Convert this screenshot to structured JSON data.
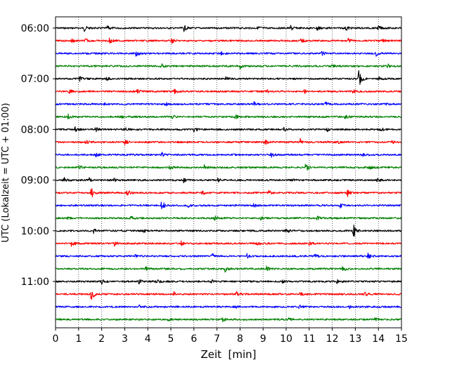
{
  "chart_data": {
    "type": "line",
    "title": "",
    "xlabel": "Zeit  [min]",
    "ylabel": "UTC (Lokalzeit = UTC + 01:00)",
    "xlim": [
      0,
      15
    ],
    "x_ticks": [
      "0",
      "1",
      "2",
      "3",
      "4",
      "5",
      "6",
      "7",
      "8",
      "9",
      "10",
      "11",
      "12",
      "13",
      "14",
      "15"
    ],
    "y_tick_labels": [
      "06:00",
      "07:00",
      "08:00",
      "09:00",
      "10:00",
      "11:00"
    ],
    "grid": "vertical dotted at each minute",
    "trace_interval_min": 15,
    "trace_colors": [
      "#000000",
      "#ff0000",
      "#0000ff",
      "#008000"
    ],
    "traces": [
      {
        "start": "06:00",
        "events": [
          {
            "t": 1.25,
            "a": 4
          },
          {
            "t": 2.25,
            "a": 3
          },
          {
            "t": 5.55,
            "a": 5
          },
          {
            "t": 8.8,
            "a": 3
          },
          {
            "t": 10.2,
            "a": 4
          },
          {
            "t": 11.35,
            "a": 5
          },
          {
            "t": 12.6,
            "a": 4
          },
          {
            "t": 14.0,
            "a": 3
          }
        ]
      },
      {
        "start": "06:15",
        "events": [
          {
            "t": 0.7,
            "a": 3
          },
          {
            "t": 1.3,
            "a": 3
          },
          {
            "t": 2.35,
            "a": 5
          },
          {
            "t": 5.05,
            "a": 3
          },
          {
            "t": 10.65,
            "a": 3
          },
          {
            "t": 12.7,
            "a": 3
          },
          {
            "t": 14.15,
            "a": 3
          }
        ]
      },
      {
        "start": "06:30",
        "events": [
          {
            "t": 3.5,
            "a": 5
          },
          {
            "t": 7.2,
            "a": 3
          },
          {
            "t": 11.55,
            "a": 3
          },
          {
            "t": 13.9,
            "a": 3
          }
        ]
      },
      {
        "start": "06:45",
        "events": [
          {
            "t": 4.55,
            "a": 5
          },
          {
            "t": 8.0,
            "a": 3
          },
          {
            "t": 11.95,
            "a": 3
          },
          {
            "t": 14.4,
            "a": 3
          }
        ]
      },
      {
        "start": "07:00",
        "events": [
          {
            "t": 1.05,
            "a": 3
          },
          {
            "t": 2.2,
            "a": 3
          },
          {
            "t": 7.35,
            "a": 3
          },
          {
            "t": 13.15,
            "a": 14
          },
          {
            "t": 14.0,
            "a": 3
          }
        ]
      },
      {
        "start": "07:15",
        "events": [
          {
            "t": 0.6,
            "a": 3
          },
          {
            "t": 3.55,
            "a": 3
          },
          {
            "t": 5.15,
            "a": 3
          },
          {
            "t": 9.15,
            "a": 3
          },
          {
            "t": 10.8,
            "a": 3
          },
          {
            "t": 12.9,
            "a": 3
          }
        ]
      },
      {
        "start": "07:30",
        "events": [
          {
            "t": 2.05,
            "a": 3
          },
          {
            "t": 4.75,
            "a": 3
          },
          {
            "t": 8.6,
            "a": 3
          },
          {
            "t": 11.7,
            "a": 3
          },
          {
            "t": 14.3,
            "a": 3
          }
        ]
      },
      {
        "start": "07:45",
        "events": [
          {
            "t": 0.55,
            "a": 3
          },
          {
            "t": 2.8,
            "a": 3
          },
          {
            "t": 5.05,
            "a": 3
          },
          {
            "t": 7.8,
            "a": 3
          },
          {
            "t": 12.55,
            "a": 3
          }
        ]
      },
      {
        "start": "08:00",
        "events": [
          {
            "t": 0.85,
            "a": 3
          },
          {
            "t": 1.7,
            "a": 5
          },
          {
            "t": 2.95,
            "a": 4
          },
          {
            "t": 6.0,
            "a": 3
          },
          {
            "t": 9.9,
            "a": 4
          },
          {
            "t": 11.75,
            "a": 3
          },
          {
            "t": 14.1,
            "a": 3
          }
        ]
      },
      {
        "start": "08:15",
        "events": [
          {
            "t": 1.3,
            "a": 3
          },
          {
            "t": 3.0,
            "a": 3
          },
          {
            "t": 9.1,
            "a": 3
          },
          {
            "t": 10.6,
            "a": 6
          },
          {
            "t": 12.2,
            "a": 3
          },
          {
            "t": 14.6,
            "a": 3
          }
        ]
      },
      {
        "start": "08:30",
        "events": [
          {
            "t": 1.75,
            "a": 3
          },
          {
            "t": 4.6,
            "a": 3
          },
          {
            "t": 9.35,
            "a": 3
          },
          {
            "t": 13.3,
            "a": 3
          }
        ]
      },
      {
        "start": "08:45",
        "events": [
          {
            "t": 1.0,
            "a": 4
          },
          {
            "t": 4.95,
            "a": 3
          },
          {
            "t": 6.45,
            "a": 3
          },
          {
            "t": 10.85,
            "a": 6
          },
          {
            "t": 13.6,
            "a": 3
          }
        ]
      },
      {
        "start": "09:00",
        "events": [
          {
            "t": 0.35,
            "a": 4
          },
          {
            "t": 1.45,
            "a": 3
          },
          {
            "t": 2.55,
            "a": 3
          },
          {
            "t": 5.55,
            "a": 3
          },
          {
            "t": 7.05,
            "a": 3
          },
          {
            "t": 10.25,
            "a": 3
          },
          {
            "t": 13.95,
            "a": 4
          }
        ]
      },
      {
        "start": "09:15",
        "events": [
          {
            "t": 1.55,
            "a": 8
          },
          {
            "t": 3.1,
            "a": 7
          },
          {
            "t": 6.35,
            "a": 3
          },
          {
            "t": 9.25,
            "a": 3
          },
          {
            "t": 12.65,
            "a": 6
          }
        ]
      },
      {
        "start": "09:30",
        "events": [
          {
            "t": 4.6,
            "a": 8
          },
          {
            "t": 5.75,
            "a": 3
          },
          {
            "t": 8.6,
            "a": 3
          },
          {
            "t": 12.35,
            "a": 3
          }
        ]
      },
      {
        "start": "09:45",
        "events": [
          {
            "t": 0.5,
            "a": 3
          },
          {
            "t": 3.25,
            "a": 3
          },
          {
            "t": 6.9,
            "a": 3
          },
          {
            "t": 8.85,
            "a": 3
          },
          {
            "t": 11.35,
            "a": 3
          }
        ]
      },
      {
        "start": "10:00",
        "events": [
          {
            "t": 1.65,
            "a": 3
          },
          {
            "t": 3.8,
            "a": 3
          },
          {
            "t": 10.0,
            "a": 4
          },
          {
            "t": 12.9,
            "a": 12
          }
        ]
      },
      {
        "start": "10:15",
        "events": [
          {
            "t": 0.7,
            "a": 6
          },
          {
            "t": 2.55,
            "a": 3
          },
          {
            "t": 5.45,
            "a": 3
          },
          {
            "t": 8.75,
            "a": 3
          },
          {
            "t": 11.0,
            "a": 3
          }
        ]
      },
      {
        "start": "10:30",
        "events": [
          {
            "t": 3.45,
            "a": 3
          },
          {
            "t": 6.8,
            "a": 3
          },
          {
            "t": 8.3,
            "a": 3
          },
          {
            "t": 11.25,
            "a": 3
          },
          {
            "t": 13.55,
            "a": 4
          }
        ]
      },
      {
        "start": "10:45",
        "events": [
          {
            "t": 3.9,
            "a": 3
          },
          {
            "t": 7.35,
            "a": 4
          },
          {
            "t": 9.15,
            "a": 3
          },
          {
            "t": 12.45,
            "a": 6
          }
        ]
      },
      {
        "start": "11:00",
        "events": [
          {
            "t": 2.0,
            "a": 3
          },
          {
            "t": 3.6,
            "a": 3
          },
          {
            "t": 4.35,
            "a": 6
          },
          {
            "t": 6.75,
            "a": 3
          },
          {
            "t": 9.85,
            "a": 3
          },
          {
            "t": 12.2,
            "a": 3
          }
        ]
      },
      {
        "start": "11:15",
        "events": [
          {
            "t": 1.55,
            "a": 10
          },
          {
            "t": 5.1,
            "a": 4
          },
          {
            "t": 7.85,
            "a": 3
          },
          {
            "t": 10.6,
            "a": 3
          },
          {
            "t": 13.4,
            "a": 3
          }
        ]
      },
      {
        "start": "11:30",
        "events": [
          {
            "t": 3.6,
            "a": 3
          },
          {
            "t": 7.75,
            "a": 3
          },
          {
            "t": 10.55,
            "a": 3
          },
          {
            "t": 12.75,
            "a": 4
          }
        ]
      },
      {
        "start": "11:45",
        "events": [
          {
            "t": 4.9,
            "a": 3
          },
          {
            "t": 7.25,
            "a": 3
          },
          {
            "t": 10.05,
            "a": 4
          },
          {
            "t": 13.85,
            "a": 3
          }
        ]
      }
    ]
  }
}
